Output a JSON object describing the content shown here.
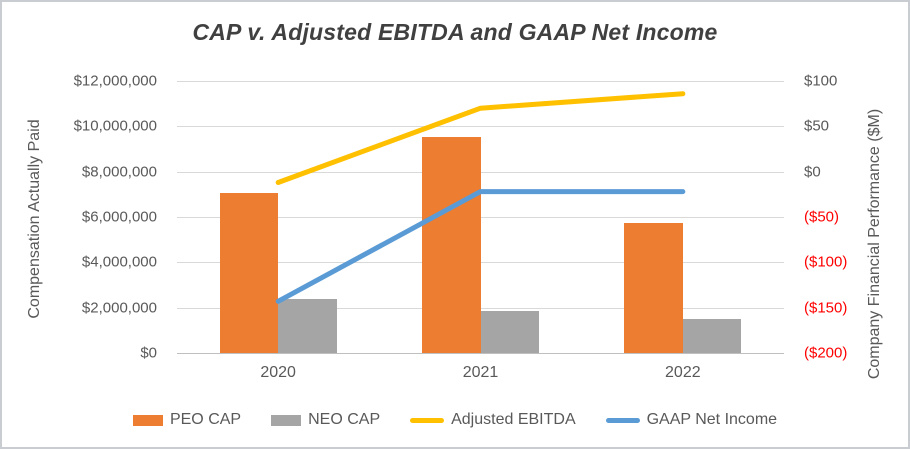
{
  "chart_data": {
    "type": "combo-bar-line",
    "title": "CAP v. Adjusted EBITDA and GAAP Net Income",
    "categories": [
      "2020",
      "2021",
      "2022"
    ],
    "bar_series": [
      {
        "name": "PEO CAP",
        "color": "#ED7D31",
        "axis": "left",
        "values": [
          7050000,
          9550000,
          5750000
        ]
      },
      {
        "name": "NEO CAP",
        "color": "#A5A5A5",
        "axis": "left",
        "values": [
          2400000,
          1850000,
          1500000
        ]
      }
    ],
    "line_series": [
      {
        "name": "Adjusted EBITDA",
        "color": "#FFC000",
        "axis": "right",
        "unit": "$M",
        "values": [
          -12,
          70,
          86
        ]
      },
      {
        "name": "GAAP Net Income",
        "color": "#5B9BD5",
        "axis": "right",
        "unit": "$M",
        "values": [
          -143,
          -22,
          -22
        ]
      }
    ],
    "left_axis": {
      "title": "Compensation Actually Paid",
      "min": 0,
      "max": 12000000,
      "tick_step": 2000000,
      "ticks": [
        "$12,000,000",
        "$10,000,000",
        "$8,000,000",
        "$6,000,000",
        "$4,000,000",
        "$2,000,000",
        "$0"
      ]
    },
    "right_axis": {
      "title": "Company Financial Performance ($M)",
      "min": -200,
      "max": 100,
      "tick_step": 50,
      "ticks": [
        "$100",
        "$50",
        "$0",
        "($50)",
        "($100)",
        "($150)",
        "($200)"
      ],
      "negative_color": "#FF0000"
    },
    "grid": true,
    "legend_position": "bottom",
    "colors": {
      "title_text": "#404040",
      "axis_text": "#595959",
      "gridline": "#D9D9D9",
      "negative_tick": "#FF0000"
    }
  }
}
